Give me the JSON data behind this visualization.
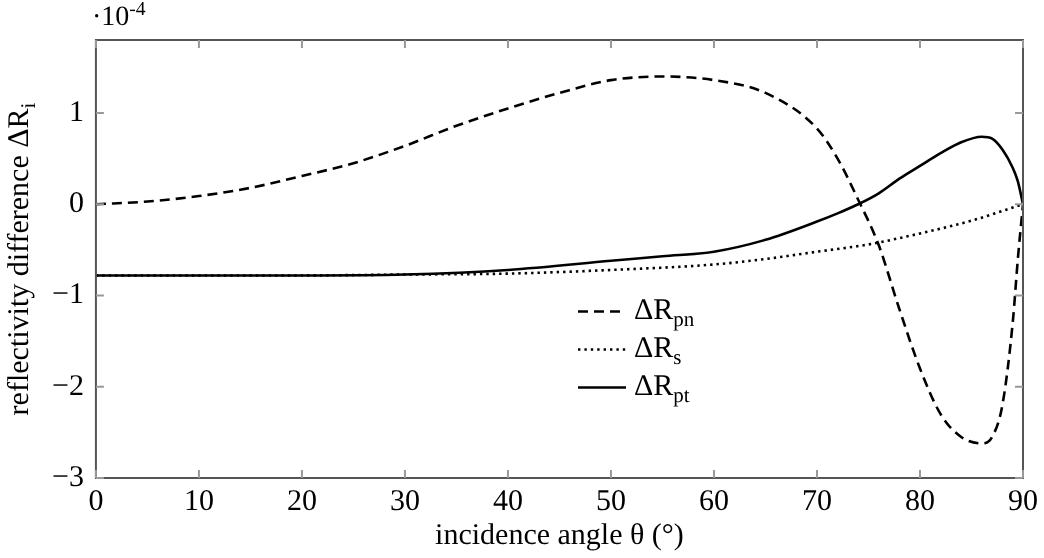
{
  "chart_data": {
    "type": "line",
    "xlabel": "incidence angle θ (°)",
    "ylabel": "reflectivity difference ΔR$_{i}$",
    "annotations": [
      "·10$^{-4}$"
    ],
    "xlim": [
      0,
      90
    ],
    "xticks": [
      0,
      10,
      20,
      30,
      40,
      50,
      60,
      70,
      80,
      90
    ],
    "ylim": [
      -3,
      1.8
    ],
    "yticks": [
      -3,
      -2,
      -1,
      0,
      1
    ],
    "grid": false,
    "legend": "bottom",
    "marker": "none",
    "series": [
      {
        "name": "ΔR$_{pn}$",
        "color": "#000000",
        "line_style": "dashed",
        "x": [
          0,
          5,
          10,
          15,
          20,
          25,
          30,
          35,
          40,
          45,
          50,
          55,
          60,
          65,
          70,
          72,
          74,
          76,
          78,
          80,
          82,
          84,
          86,
          87,
          88,
          89,
          89.5,
          90
        ],
        "values": [
          0,
          0.03,
          0.09,
          0.18,
          0.31,
          0.45,
          0.64,
          0.86,
          1.05,
          1.22,
          1.36,
          1.4,
          1.36,
          1.22,
          0.83,
          0.5,
          0.05,
          -0.45,
          -1.15,
          -1.8,
          -2.3,
          -2.55,
          -2.62,
          -2.55,
          -2.2,
          -1.3,
          -0.6,
          0
        ]
      },
      {
        "name": "ΔR$_{s}$",
        "color": "#000000",
        "line_style": "dotted",
        "x": [
          0,
          10,
          20,
          30,
          40,
          50,
          60,
          65,
          70,
          75,
          80,
          85,
          90
        ],
        "values": [
          -0.78,
          -0.78,
          -0.78,
          -0.77,
          -0.76,
          -0.72,
          -0.66,
          -0.6,
          -0.52,
          -0.44,
          -0.32,
          -0.18,
          0
        ]
      },
      {
        "name": "ΔR$_{pt}$",
        "color": "#000000",
        "line_style": "solid",
        "x": [
          0,
          10,
          20,
          30,
          40,
          50,
          55,
          60,
          65,
          70,
          72,
          74,
          76,
          78,
          80,
          82,
          84,
          86,
          87,
          88,
          89,
          89.5,
          90
        ],
        "values": [
          -0.78,
          -0.78,
          -0.78,
          -0.77,
          -0.72,
          -0.62,
          -0.57,
          -0.52,
          -0.39,
          -0.19,
          -0.1,
          0,
          0.12,
          0.28,
          0.42,
          0.56,
          0.68,
          0.74,
          0.72,
          0.6,
          0.4,
          0.25,
          0
        ]
      }
    ]
  }
}
